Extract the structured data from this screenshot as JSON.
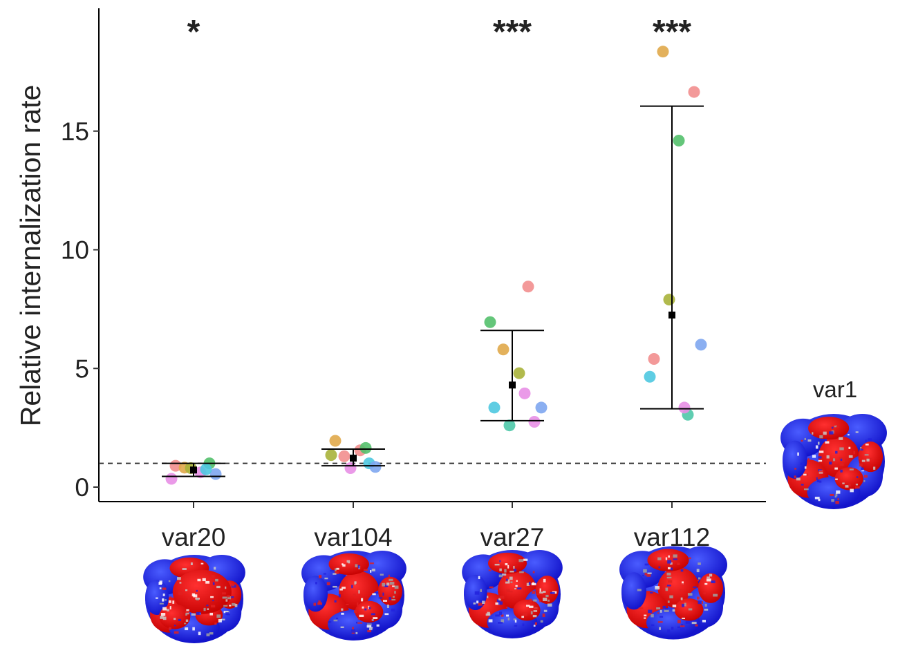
{
  "chart_data": {
    "type": "scatter",
    "title": "",
    "xlabel": "",
    "ylabel": "Relative internalization rate",
    "ylim": [
      -0.6,
      20.1
    ],
    "yticks": [
      0,
      5,
      10,
      15
    ],
    "reference_line": {
      "y": 1,
      "style": "dashed"
    },
    "categories": [
      "var20",
      "var104",
      "var27",
      "var112"
    ],
    "significance": [
      "*",
      "",
      "***",
      "***"
    ],
    "reference_structure_label": "var1",
    "groups": [
      {
        "name": "var20",
        "mean": 0.72,
        "error_low": 0.45,
        "error_high": 1.0,
        "points": [
          {
            "y": 0.9,
            "color": "#f28e8e"
          },
          {
            "y": 0.82,
            "color": "#e0a94a"
          },
          {
            "y": 0.8,
            "color": "#a8b23a"
          },
          {
            "y": 0.62,
            "color": "#e88fe6"
          },
          {
            "y": 1.0,
            "color": "#53c06b"
          },
          {
            "y": 0.55,
            "color": "#7ea6f0"
          },
          {
            "y": 0.35,
            "color": "#e88fe6"
          },
          {
            "y": 0.75,
            "color": "#4ec8e0"
          }
        ]
      },
      {
        "name": "var104",
        "mean": 1.22,
        "error_low": 0.9,
        "error_high": 1.6,
        "points": [
          {
            "y": 1.95,
            "color": "#e0a94a"
          },
          {
            "y": 1.3,
            "color": "#f28e8e"
          },
          {
            "y": 0.8,
            "color": "#e88fe6"
          },
          {
            "y": 1.55,
            "color": "#f28e8e"
          },
          {
            "y": 1.0,
            "color": "#4ec8e0"
          },
          {
            "y": 0.85,
            "color": "#7ea6f0"
          },
          {
            "y": 1.35,
            "color": "#a8b23a"
          },
          {
            "y": 1.65,
            "color": "#53c06b"
          }
        ]
      },
      {
        "name": "var27",
        "mean": 4.3,
        "error_low": 2.8,
        "error_high": 6.6,
        "points": [
          {
            "y": 3.35,
            "color": "#4ec8e0"
          },
          {
            "y": 5.8,
            "color": "#e0a94a"
          },
          {
            "y": 2.6,
            "color": "#4ec8a8"
          },
          {
            "y": 4.8,
            "color": "#a8b23a"
          },
          {
            "y": 8.45,
            "color": "#f28e8e"
          },
          {
            "y": 2.75,
            "color": "#e88fe6"
          },
          {
            "y": 6.95,
            "color": "#53c06b"
          },
          {
            "y": 3.95,
            "color": "#e88fe6"
          },
          {
            "y": 3.35,
            "color": "#7ea6f0"
          }
        ]
      },
      {
        "name": "var112",
        "mean": 7.25,
        "error_low": 3.3,
        "error_high": 16.05,
        "points": [
          {
            "y": 5.4,
            "color": "#f28e8e"
          },
          {
            "y": 18.35,
            "color": "#e0a94a"
          },
          {
            "y": 7.9,
            "color": "#a8b23a"
          },
          {
            "y": 14.6,
            "color": "#53c06b"
          },
          {
            "y": 3.05,
            "color": "#4ec8a8"
          },
          {
            "y": 16.65,
            "color": "#f28e8e"
          },
          {
            "y": 4.65,
            "color": "#4ec8e0"
          },
          {
            "y": 3.35,
            "color": "#e88fe6"
          },
          {
            "y": 6.0,
            "color": "#7ea6f0"
          }
        ]
      }
    ]
  }
}
